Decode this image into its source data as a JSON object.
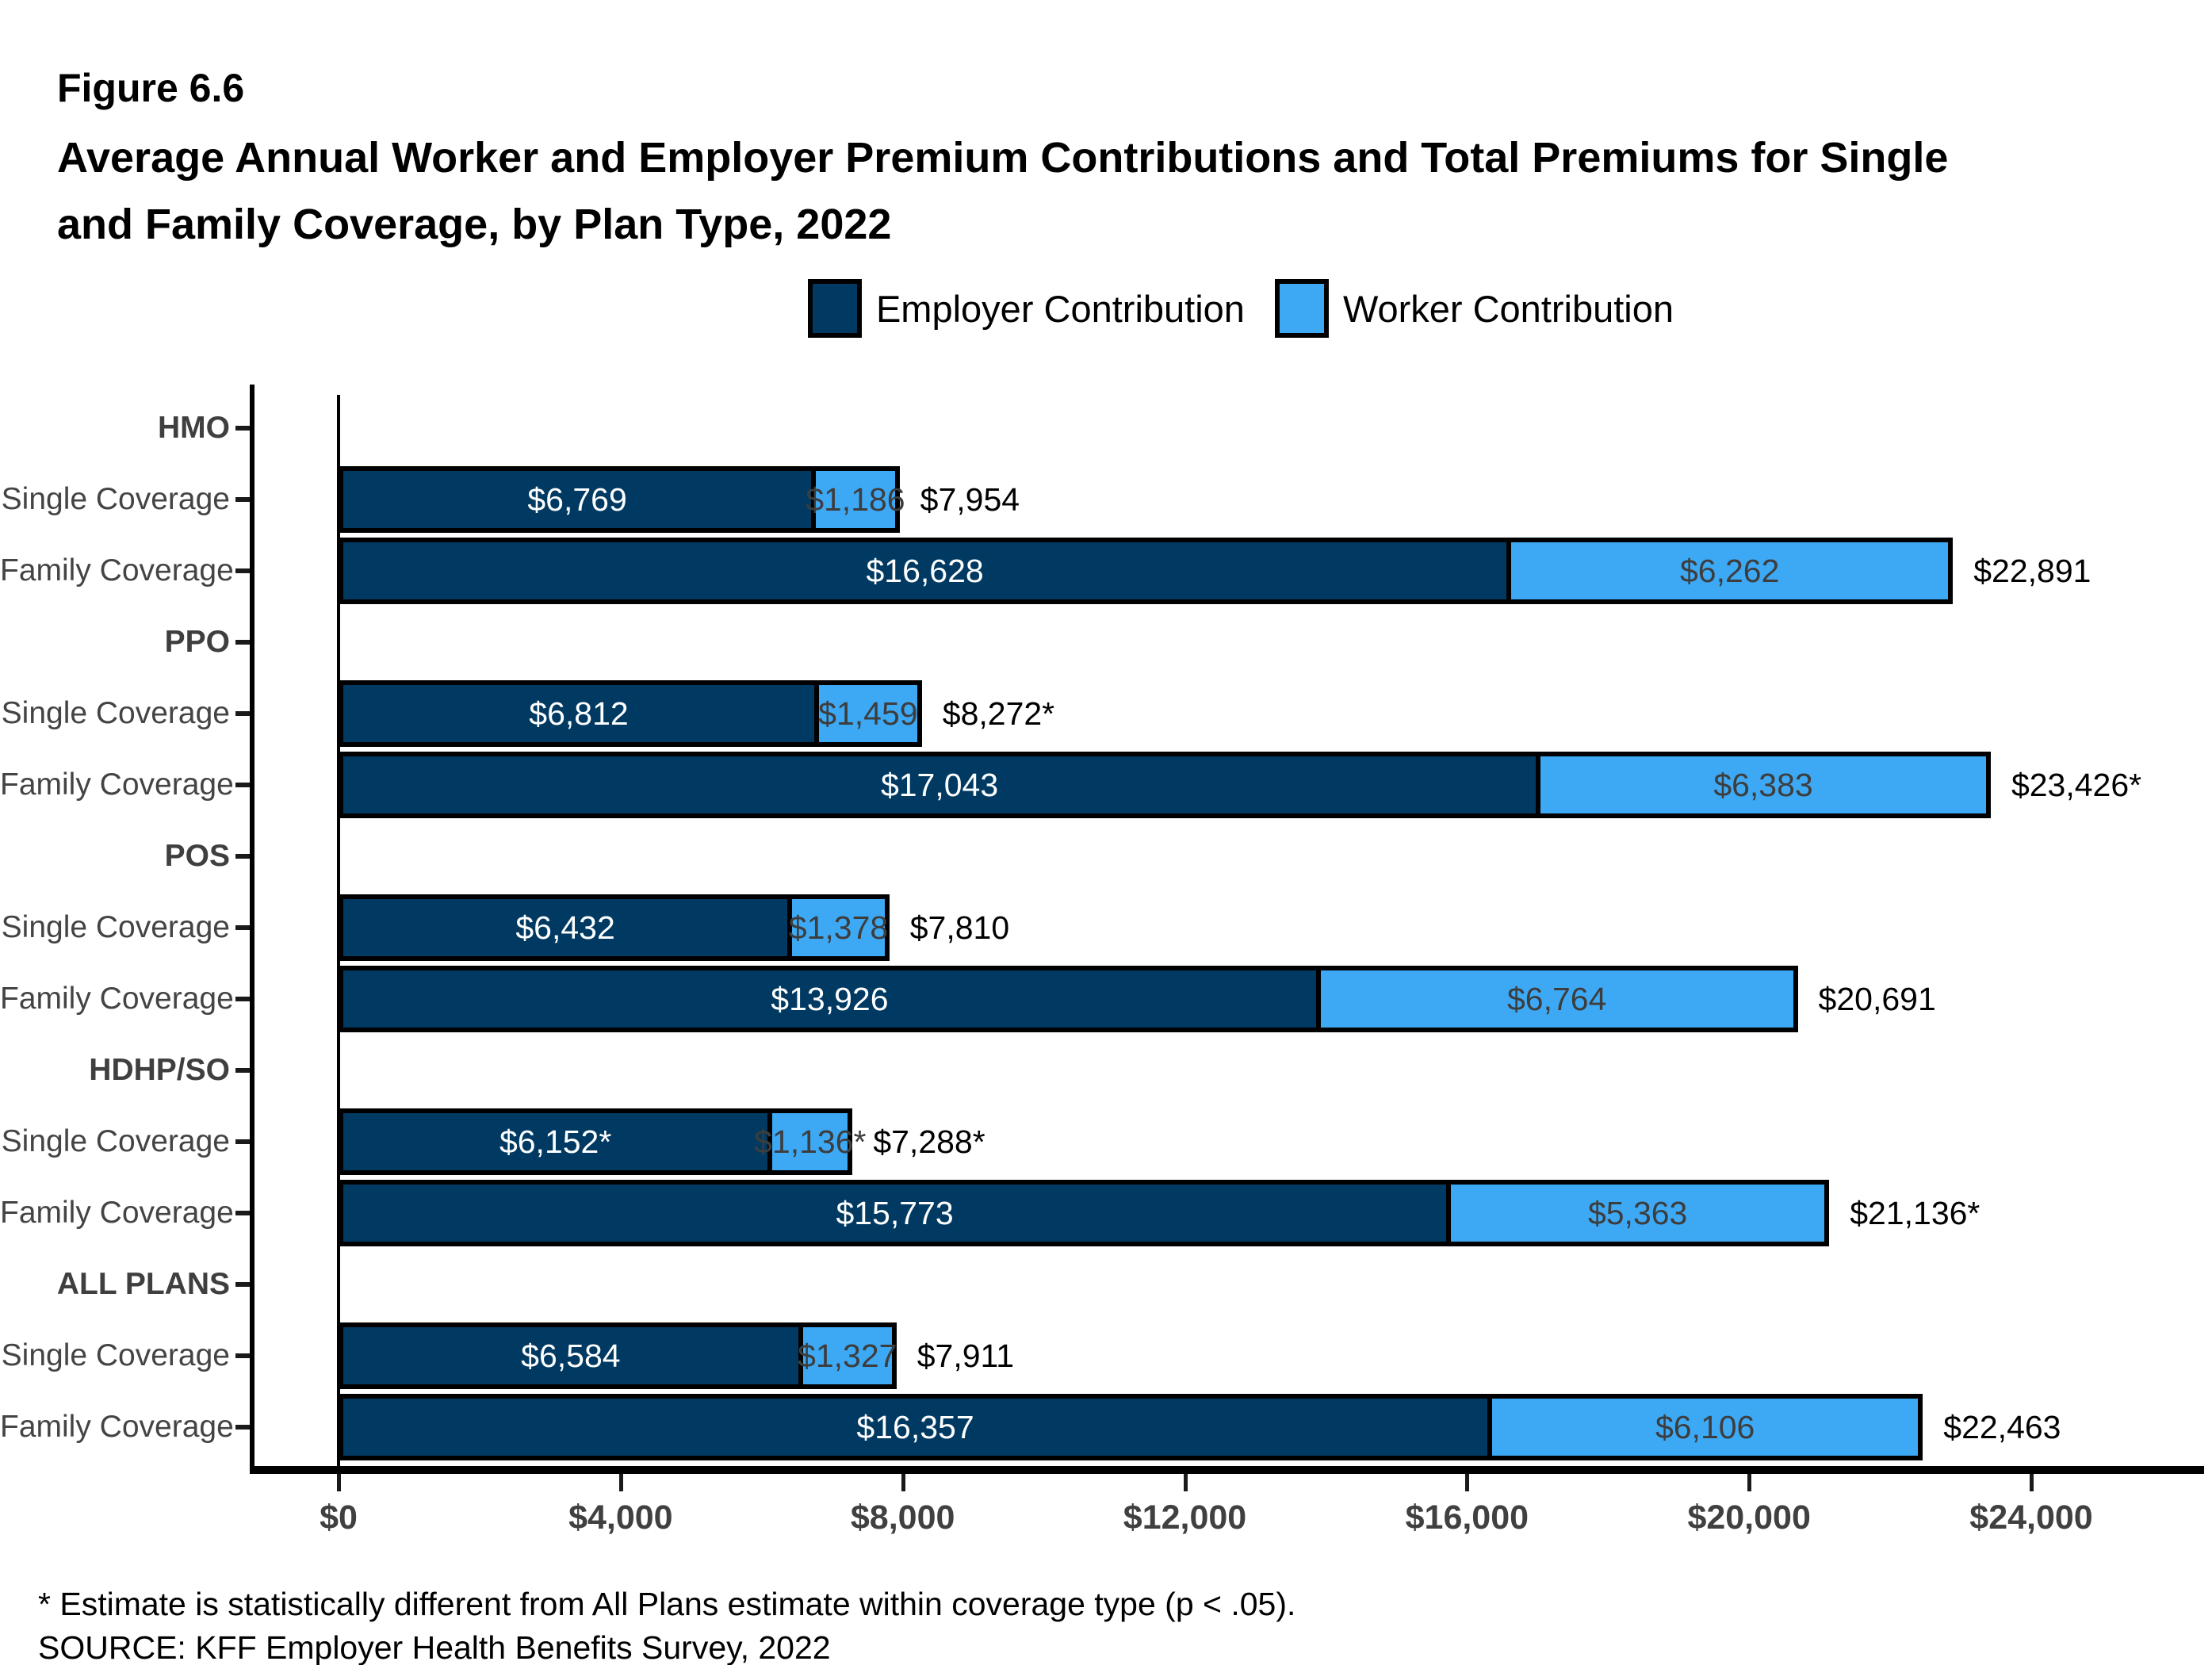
{
  "figure_label": "Figure 6.6",
  "title_line1": "Average Annual Worker and Employer Premium Contributions and Total Premiums for Single",
  "title_line2": "and Family Coverage, by Plan Type, 2022",
  "legend": {
    "employer": "Employer Contribution",
    "worker": "Worker Contribution"
  },
  "colors": {
    "employer": "#003A63",
    "worker": "#3DA9F5",
    "bar_border": "#000000",
    "axis_text": "#404040"
  },
  "footnote": "* Estimate is statistically different from All Plans estimate within coverage type (p < .05).",
  "source": "SOURCE: KFF Employer Health Benefits Survey, 2022",
  "chart_data": {
    "type": "bar",
    "orientation": "horizontal",
    "stacked": true,
    "legend_position": "top",
    "grid": false,
    "xlim": [
      0,
      24000
    ],
    "x_axis": {
      "tick_labels": [
        "$0",
        "$4,000",
        "$8,000",
        "$12,000",
        "$16,000",
        "$20,000",
        "$24,000"
      ],
      "tick_values": [
        0,
        4000,
        8000,
        12000,
        16000,
        20000,
        24000
      ]
    },
    "series_names": [
      "Employer Contribution",
      "Worker Contribution"
    ],
    "groups": [
      {
        "plan": "HMO",
        "rows": [
          {
            "label": "Single Coverage",
            "employer": 6769,
            "worker": 1186,
            "employer_label": "$6,769",
            "worker_label": "$1,186",
            "total_label": "$7,954"
          },
          {
            "label": "Family Coverage",
            "employer": 16628,
            "worker": 6262,
            "employer_label": "$16,628",
            "worker_label": "$6,262",
            "total_label": "$22,891"
          }
        ]
      },
      {
        "plan": "PPO",
        "rows": [
          {
            "label": "Single Coverage",
            "employer": 6812,
            "worker": 1459,
            "employer_label": "$6,812",
            "worker_label": "$1,459",
            "total_label": "$8,272*"
          },
          {
            "label": "Family Coverage",
            "employer": 17043,
            "worker": 6383,
            "employer_label": "$17,043",
            "worker_label": "$6,383",
            "total_label": "$23,426*"
          }
        ]
      },
      {
        "plan": "POS",
        "rows": [
          {
            "label": "Single Coverage",
            "employer": 6432,
            "worker": 1378,
            "employer_label": "$6,432",
            "worker_label": "$1,378",
            "total_label": "$7,810"
          },
          {
            "label": "Family Coverage",
            "employer": 13926,
            "worker": 6764,
            "employer_label": "$13,926",
            "worker_label": "$6,764",
            "total_label": "$20,691"
          }
        ]
      },
      {
        "plan": "HDHP/SO",
        "rows": [
          {
            "label": "Single Coverage",
            "employer": 6152,
            "worker": 1136,
            "employer_label": "$6,152*",
            "worker_label": "$1,136*",
            "total_label": "$7,288*"
          },
          {
            "label": "Family Coverage",
            "employer": 15773,
            "worker": 5363,
            "employer_label": "$15,773",
            "worker_label": "$5,363",
            "total_label": "$21,136*"
          }
        ]
      },
      {
        "plan": "ALL PLANS",
        "rows": [
          {
            "label": "Single Coverage",
            "employer": 6584,
            "worker": 1327,
            "employer_label": "$6,584",
            "worker_label": "$1,327",
            "total_label": "$7,911"
          },
          {
            "label": "Family Coverage",
            "employer": 16357,
            "worker": 6106,
            "employer_label": "$16,357",
            "worker_label": "$6,106",
            "total_label": "$22,463"
          }
        ]
      }
    ]
  }
}
